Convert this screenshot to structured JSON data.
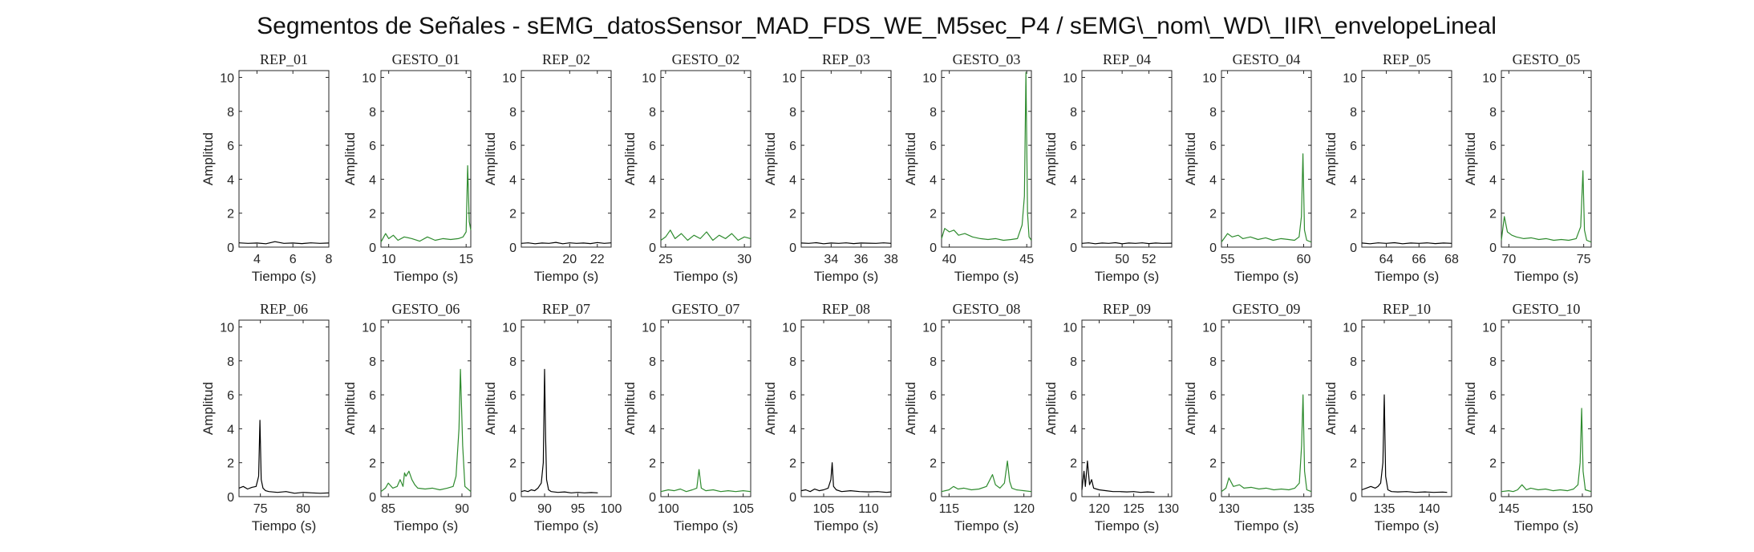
{
  "figure_title": "Segmentos de Señales - sEMG_datosSensor_MAD_FDS_WE_M5sec_P4 / sEMG\\_nom\\_WD\\_IIR\\_envelopeLineal",
  "colors": {
    "rep": "#000000",
    "gesto": "#2e8b2e"
  },
  "chart_data": [
    {
      "type": "line",
      "title": "REP_01",
      "xlabel": "Tiempo (s)",
      "ylabel": "Amplitud",
      "xlim": [
        3,
        8
      ],
      "ylim": [
        0,
        10.4
      ],
      "xticks": [
        4,
        6,
        8
      ],
      "yticks": [
        0,
        2,
        4,
        6,
        8,
        10
      ],
      "kind": "rep",
      "x": [
        3,
        3.5,
        4,
        4.5,
        5,
        5.5,
        6,
        6.5,
        7,
        7.5,
        8
      ],
      "y": [
        0.25,
        0.22,
        0.24,
        0.2,
        0.32,
        0.22,
        0.24,
        0.21,
        0.25,
        0.22,
        0.24
      ]
    },
    {
      "type": "line",
      "title": "GESTO_01",
      "xlabel": "Tiempo (s)",
      "ylabel": "Amplitud",
      "xlim": [
        9.5,
        15.3
      ],
      "ylim": [
        0,
        10.4
      ],
      "xticks": [
        10,
        15
      ],
      "yticks": [
        0,
        2,
        4,
        6,
        8,
        10
      ],
      "kind": "gesto",
      "x": [
        9.5,
        9.8,
        10,
        10.3,
        10.6,
        11,
        11.5,
        12,
        12.5,
        13,
        13.5,
        14,
        14.5,
        14.8,
        15,
        15.1,
        15.2,
        15.3
      ],
      "y": [
        0.3,
        0.8,
        0.5,
        0.7,
        0.4,
        0.6,
        0.5,
        0.35,
        0.6,
        0.4,
        0.5,
        0.45,
        0.5,
        0.6,
        0.9,
        4.8,
        1.5,
        1.0
      ]
    },
    {
      "type": "line",
      "title": "REP_02",
      "xlabel": "Tiempo (s)",
      "ylabel": "Amplitud",
      "xlim": [
        16.5,
        23
      ],
      "ylim": [
        0,
        10.4
      ],
      "xticks": [
        20,
        22
      ],
      "yticks": [
        0,
        2,
        4,
        6,
        8,
        10
      ],
      "kind": "rep",
      "x": [
        16.5,
        17,
        17.5,
        18,
        18.5,
        19,
        19.5,
        20,
        20.5,
        21,
        21.5,
        22,
        22.5,
        23
      ],
      "y": [
        0.22,
        0.25,
        0.2,
        0.24,
        0.22,
        0.28,
        0.2,
        0.25,
        0.22,
        0.24,
        0.21,
        0.27,
        0.22,
        0.25
      ]
    },
    {
      "type": "line",
      "title": "GESTO_02",
      "xlabel": "Tiempo (s)",
      "ylabel": "Amplitud",
      "xlim": [
        24.7,
        30.4
      ],
      "ylim": [
        0,
        10.4
      ],
      "xticks": [
        25,
        30
      ],
      "yticks": [
        0,
        2,
        4,
        6,
        8,
        10
      ],
      "kind": "gesto",
      "x": [
        24.7,
        25,
        25.3,
        25.6,
        26,
        26.4,
        26.8,
        27.2,
        27.6,
        28,
        28.4,
        28.8,
        29.2,
        29.6,
        30,
        30.4
      ],
      "y": [
        0.4,
        0.6,
        1.0,
        0.5,
        0.8,
        0.4,
        0.7,
        0.5,
        0.9,
        0.4,
        0.7,
        0.5,
        0.8,
        0.4,
        0.6,
        0.5
      ]
    },
    {
      "type": "line",
      "title": "REP_03",
      "xlabel": "Tiempo (s)",
      "ylabel": "Amplitud",
      "xlim": [
        32,
        38
      ],
      "ylim": [
        0,
        10.4
      ],
      "xticks": [
        34,
        36,
        38
      ],
      "yticks": [
        0,
        2,
        4,
        6,
        8,
        10
      ],
      "kind": "rep",
      "x": [
        32,
        32.5,
        33,
        33.5,
        34,
        34.5,
        35,
        35.5,
        36,
        36.5,
        37,
        37.5,
        38
      ],
      "y": [
        0.24,
        0.22,
        0.26,
        0.2,
        0.24,
        0.22,
        0.25,
        0.21,
        0.24,
        0.23,
        0.22,
        0.25,
        0.22
      ]
    },
    {
      "type": "line",
      "title": "GESTO_03",
      "xlabel": "Tiempo (s)",
      "ylabel": "Amplitud",
      "xlim": [
        39.5,
        45.3
      ],
      "ylim": [
        0,
        10.4
      ],
      "xticks": [
        40,
        45
      ],
      "yticks": [
        0,
        2,
        4,
        6,
        8,
        10
      ],
      "kind": "gesto",
      "x": [
        39.5,
        39.7,
        40,
        40.3,
        40.6,
        41,
        41.5,
        42,
        42.5,
        43,
        43.5,
        44,
        44.4,
        44.7,
        44.85,
        44.95,
        45.05,
        45.15,
        45.3
      ],
      "y": [
        0.5,
        1.1,
        0.9,
        1.0,
        0.7,
        0.8,
        0.6,
        0.5,
        0.45,
        0.5,
        0.4,
        0.45,
        0.5,
        1.3,
        3.0,
        10.3,
        2.0,
        0.6,
        0.4
      ]
    },
    {
      "type": "line",
      "title": "REP_04",
      "xlabel": "Tiempo (s)",
      "ylabel": "Amplitud",
      "xlim": [
        47,
        53.7
      ],
      "ylim": [
        0,
        10.4
      ],
      "xticks": [
        50,
        52
      ],
      "yticks": [
        0,
        2,
        4,
        6,
        8,
        10
      ],
      "kind": "rep",
      "x": [
        47,
        47.5,
        48,
        48.5,
        49,
        49.5,
        50,
        50.5,
        51,
        51.5,
        52,
        52.5,
        53,
        53.7
      ],
      "y": [
        0.22,
        0.25,
        0.2,
        0.24,
        0.22,
        0.26,
        0.2,
        0.24,
        0.22,
        0.25,
        0.21,
        0.24,
        0.22,
        0.23
      ]
    },
    {
      "type": "line",
      "title": "GESTO_04",
      "xlabel": "Tiempo (s)",
      "ylabel": "Amplitud",
      "xlim": [
        54.6,
        60.5
      ],
      "ylim": [
        0,
        10.4
      ],
      "xticks": [
        55,
        60
      ],
      "yticks": [
        0,
        2,
        4,
        6,
        8,
        10
      ],
      "kind": "gesto",
      "x": [
        54.6,
        55,
        55.3,
        55.7,
        56,
        56.5,
        57,
        57.5,
        58,
        58.5,
        59,
        59.4,
        59.7,
        59.85,
        59.95,
        60.05,
        60.2,
        60.5
      ],
      "y": [
        0.3,
        0.8,
        0.6,
        0.7,
        0.5,
        0.6,
        0.45,
        0.55,
        0.4,
        0.5,
        0.45,
        0.4,
        0.6,
        1.8,
        5.5,
        1.0,
        0.4,
        0.3
      ]
    },
    {
      "type": "line",
      "title": "REP_05",
      "xlabel": "Tiempo (s)",
      "ylabel": "Amplitud",
      "xlim": [
        62.5,
        68
      ],
      "ylim": [
        0,
        10.4
      ],
      "xticks": [
        64,
        66,
        68
      ],
      "yticks": [
        0,
        2,
        4,
        6,
        8,
        10
      ],
      "kind": "rep",
      "x": [
        62.5,
        63,
        63.5,
        64,
        64.5,
        65,
        65.5,
        66,
        66.5,
        67,
        67.5,
        68
      ],
      "y": [
        0.24,
        0.2,
        0.25,
        0.22,
        0.26,
        0.2,
        0.24,
        0.22,
        0.25,
        0.21,
        0.24,
        0.22
      ]
    },
    {
      "type": "line",
      "title": "GESTO_05",
      "xlabel": "Tiempo (s)",
      "ylabel": "Amplitud",
      "xlim": [
        69.5,
        75.5
      ],
      "ylim": [
        0,
        10.4
      ],
      "xticks": [
        70,
        75
      ],
      "yticks": [
        0,
        2,
        4,
        6,
        8,
        10
      ],
      "kind": "gesto",
      "x": [
        69.5,
        69.7,
        69.9,
        70.2,
        70.5,
        71,
        71.5,
        72,
        72.5,
        73,
        73.5,
        74,
        74.5,
        74.8,
        74.95,
        75.05,
        75.2,
        75.5
      ],
      "y": [
        0.4,
        1.8,
        0.9,
        0.7,
        0.6,
        0.5,
        0.55,
        0.45,
        0.5,
        0.4,
        0.45,
        0.4,
        0.5,
        1.2,
        4.5,
        1.0,
        0.4,
        0.3
      ]
    },
    {
      "type": "line",
      "title": "REP_06",
      "xlabel": "Tiempo (s)",
      "ylabel": "Amplitud",
      "xlim": [
        72.5,
        83
      ],
      "ylim": [
        0,
        10.4
      ],
      "xticks": [
        75,
        80
      ],
      "yticks": [
        0,
        2,
        4,
        6,
        8,
        10
      ],
      "kind": "rep",
      "x": [
        72.5,
        73,
        73.5,
        74,
        74.5,
        74.8,
        74.95,
        75.1,
        75.3,
        75.6,
        76,
        77,
        78,
        79,
        80,
        81,
        82,
        83
      ],
      "y": [
        0.5,
        0.6,
        0.45,
        0.55,
        0.6,
        1.2,
        4.5,
        1.0,
        0.5,
        0.35,
        0.3,
        0.25,
        0.3,
        0.2,
        0.25,
        0.22,
        0.2,
        0.22
      ]
    },
    {
      "type": "line",
      "title": "GESTO_06",
      "xlabel": "Tiempo (s)",
      "ylabel": "Amplitud",
      "xlim": [
        84.5,
        90.6
      ],
      "ylim": [
        0,
        10.4
      ],
      "xticks": [
        85,
        90
      ],
      "yticks": [
        0,
        2,
        4,
        6,
        8,
        10
      ],
      "kind": "gesto",
      "x": [
        84.5,
        84.8,
        85,
        85.3,
        85.6,
        85.8,
        86,
        86.1,
        86.2,
        86.4,
        86.6,
        86.8,
        87,
        87.5,
        88,
        88.5,
        89,
        89.4,
        89.6,
        89.8,
        89.9,
        90.05,
        90.2,
        90.6
      ],
      "y": [
        0.3,
        0.5,
        0.8,
        0.5,
        0.6,
        1.0,
        0.6,
        1.4,
        1.2,
        1.5,
        1.0,
        0.7,
        0.5,
        0.45,
        0.5,
        0.4,
        0.5,
        0.6,
        1.2,
        4.0,
        7.5,
        3.0,
        0.6,
        0.3
      ]
    },
    {
      "type": "line",
      "title": "REP_07",
      "xlabel": "Tiempo (s)",
      "ylabel": "Amplitud",
      "xlim": [
        86.5,
        100
      ],
      "ylim": [
        0,
        10.4
      ],
      "xticks": [
        90,
        95,
        100
      ],
      "yticks": [
        0,
        2,
        4,
        6,
        8,
        10
      ],
      "kind": "rep",
      "x": [
        86.5,
        87,
        87.5,
        88,
        88.5,
        89,
        89.5,
        89.8,
        90,
        90.15,
        90.3,
        90.6,
        91,
        92,
        93,
        94,
        95,
        96,
        97,
        98
      ],
      "y": [
        0.3,
        0.35,
        0.3,
        0.4,
        0.35,
        0.5,
        0.8,
        2.0,
        7.5,
        3.5,
        1.0,
        0.4,
        0.3,
        0.25,
        0.28,
        0.22,
        0.25,
        0.22,
        0.24,
        0.22
      ]
    },
    {
      "type": "line",
      "title": "GESTO_07",
      "xlabel": "Tiempo (s)",
      "ylabel": "Amplitud",
      "xlim": [
        99.5,
        105.5
      ],
      "ylim": [
        0,
        10.4
      ],
      "xticks": [
        100,
        105
      ],
      "yticks": [
        0,
        2,
        4,
        6,
        8,
        10
      ],
      "kind": "gesto",
      "x": [
        99.5,
        100,
        100.4,
        100.8,
        101.2,
        101.6,
        101.9,
        102.05,
        102.2,
        102.5,
        103,
        103.5,
        104,
        104.5,
        105,
        105.5
      ],
      "y": [
        0.3,
        0.4,
        0.35,
        0.45,
        0.3,
        0.4,
        0.5,
        1.6,
        0.5,
        0.35,
        0.4,
        0.3,
        0.35,
        0.3,
        0.35,
        0.3
      ]
    },
    {
      "type": "line",
      "title": "REP_08",
      "xlabel": "Tiempo (s)",
      "ylabel": "Amplitud",
      "xlim": [
        102.5,
        112.5
      ],
      "ylim": [
        0,
        10.4
      ],
      "xticks": [
        105,
        110
      ],
      "yticks": [
        0,
        2,
        4,
        6,
        8,
        10
      ],
      "kind": "rep",
      "x": [
        102.5,
        103,
        103.5,
        104,
        104.5,
        105,
        105.5,
        105.8,
        105.95,
        106.1,
        106.4,
        107,
        108,
        109,
        110,
        111,
        112,
        112.5
      ],
      "y": [
        0.35,
        0.4,
        0.3,
        0.45,
        0.35,
        0.4,
        0.5,
        1.0,
        2.0,
        0.6,
        0.4,
        0.3,
        0.35,
        0.3,
        0.28,
        0.3,
        0.25,
        0.28
      ]
    },
    {
      "type": "line",
      "title": "GESTO_08",
      "xlabel": "Tiempo (s)",
      "ylabel": "Amplitud",
      "xlim": [
        114.5,
        120.5
      ],
      "ylim": [
        0,
        10.4
      ],
      "xticks": [
        115,
        120
      ],
      "yticks": [
        0,
        2,
        4,
        6,
        8,
        10
      ],
      "kind": "gesto",
      "x": [
        114.5,
        115,
        115.3,
        115.6,
        116,
        116.5,
        117,
        117.5,
        117.9,
        118.1,
        118.4,
        118.7,
        118.9,
        119.05,
        119.2,
        119.5,
        120,
        120.5
      ],
      "y": [
        0.3,
        0.4,
        0.6,
        0.45,
        0.5,
        0.4,
        0.45,
        0.6,
        1.3,
        0.7,
        0.5,
        0.8,
        2.1,
        0.9,
        0.5,
        0.4,
        0.35,
        0.3
      ]
    },
    {
      "type": "line",
      "title": "REP_09",
      "xlabel": "Tiempo (s)",
      "ylabel": "Amplitud",
      "xlim": [
        117.5,
        130.5
      ],
      "ylim": [
        0,
        10.4
      ],
      "xticks": [
        120,
        125,
        130
      ],
      "yticks": [
        0,
        2,
        4,
        6,
        8,
        10
      ],
      "kind": "rep",
      "x": [
        117.5,
        117.8,
        118,
        118.3,
        118.6,
        118.9,
        119.2,
        119.6,
        120,
        121,
        122,
        123,
        124,
        125,
        126,
        127,
        128
      ],
      "y": [
        0.4,
        1.5,
        0.6,
        2.1,
        0.7,
        1.0,
        0.5,
        0.45,
        0.4,
        0.35,
        0.3,
        0.3,
        0.28,
        0.3,
        0.25,
        0.28,
        0.25
      ]
    },
    {
      "type": "line",
      "title": "GESTO_09",
      "xlabel": "Tiempo (s)",
      "ylabel": "Amplitud",
      "xlim": [
        129.5,
        135.5
      ],
      "ylim": [
        0,
        10.4
      ],
      "xticks": [
        130,
        135
      ],
      "yticks": [
        0,
        2,
        4,
        6,
        8,
        10
      ],
      "kind": "gesto",
      "x": [
        129.5,
        129.8,
        130,
        130.3,
        130.7,
        131,
        131.5,
        132,
        132.5,
        133,
        133.5,
        134,
        134.4,
        134.7,
        134.85,
        134.95,
        135.05,
        135.2,
        135.5
      ],
      "y": [
        0.3,
        0.5,
        1.1,
        0.6,
        0.7,
        0.5,
        0.55,
        0.45,
        0.5,
        0.4,
        0.45,
        0.4,
        0.5,
        0.8,
        3.0,
        6.0,
        1.5,
        0.4,
        0.3
      ]
    },
    {
      "type": "line",
      "title": "REP_10",
      "xlabel": "Tiempo (s)",
      "ylabel": "Amplitud",
      "xlim": [
        132.5,
        142.5
      ],
      "ylim": [
        0,
        10.4
      ],
      "xticks": [
        135,
        140
      ],
      "yticks": [
        0,
        2,
        4,
        6,
        8,
        10
      ],
      "kind": "rep",
      "x": [
        132.5,
        133,
        133.5,
        134,
        134.3,
        134.6,
        134.85,
        135,
        135.15,
        135.4,
        135.8,
        136.5,
        137.5,
        138.5,
        139.5,
        140.5,
        141.5,
        142
      ],
      "y": [
        0.4,
        0.5,
        0.6,
        0.5,
        0.6,
        0.8,
        2.0,
        6.0,
        1.2,
        0.4,
        0.3,
        0.28,
        0.3,
        0.25,
        0.28,
        0.25,
        0.27,
        0.25
      ]
    },
    {
      "type": "line",
      "title": "GESTO_10",
      "xlabel": "Tiempo (s)",
      "ylabel": "Amplitud",
      "xlim": [
        144.5,
        150.6
      ],
      "ylim": [
        0,
        10.4
      ],
      "xticks": [
        145,
        150
      ],
      "yticks": [
        0,
        2,
        4,
        6,
        8,
        10
      ],
      "kind": "gesto",
      "x": [
        144.5,
        145,
        145.3,
        145.6,
        145.9,
        146.2,
        146.5,
        147,
        147.5,
        148,
        148.5,
        149,
        149.4,
        149.7,
        149.85,
        149.95,
        150.05,
        150.2,
        150.6
      ],
      "y": [
        0.3,
        0.35,
        0.3,
        0.4,
        0.7,
        0.4,
        0.5,
        0.4,
        0.45,
        0.35,
        0.4,
        0.35,
        0.45,
        0.7,
        2.0,
        5.2,
        1.5,
        0.4,
        0.3
      ]
    }
  ]
}
